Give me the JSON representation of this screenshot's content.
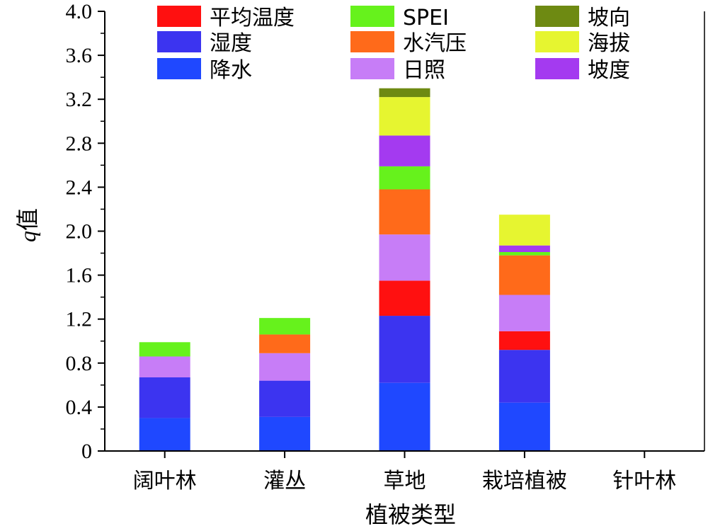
{
  "chart_data": {
    "type": "bar",
    "stacked": true,
    "xlabel": "植被类型",
    "ylabel": "q值",
    "ylabel_italic_part": "q",
    "ylabel_rest": "值",
    "ylim": [
      0,
      4.0
    ],
    "yticks": [
      "0",
      "0.4",
      "0.8",
      "1.2",
      "1.6",
      "2.0",
      "2.4",
      "2.8",
      "3.2",
      "3.6",
      "4.0"
    ],
    "ytick_values": [
      0,
      0.4,
      0.8,
      1.2,
      1.6,
      2.0,
      2.4,
      2.8,
      3.2,
      3.6,
      4.0
    ],
    "grid": false,
    "legend_position": "top, inside plot, 3 columns",
    "categories": [
      "阔叶林",
      "灌丛",
      "草地",
      "栽培植被",
      "针叶林"
    ],
    "series": [
      {
        "name": "降水",
        "color": "#1F48FF",
        "values": [
          0.3,
          0.31,
          0.62,
          0.44,
          0
        ]
      },
      {
        "name": "湿度",
        "color": "#3C34F0",
        "values": [
          0.37,
          0.33,
          0.61,
          0.48,
          0
        ]
      },
      {
        "name": "平均温度",
        "color": "#FF1010",
        "values": [
          0,
          0,
          0.32,
          0.17,
          0
        ]
      },
      {
        "name": "日照",
        "color": "#C77DF7",
        "values": [
          0.19,
          0.25,
          0.42,
          0.33,
          0
        ]
      },
      {
        "name": "水汽压",
        "color": "#FF6A1A",
        "values": [
          0,
          0.17,
          0.41,
          0.36,
          0
        ]
      },
      {
        "name": "SPEI",
        "color": "#66F21C",
        "values": [
          0.13,
          0.15,
          0.21,
          0.03,
          0
        ]
      },
      {
        "name": "坡度",
        "color": "#A43AF0",
        "values": [
          0,
          0,
          0.28,
          0.06,
          0
        ]
      },
      {
        "name": "海拔",
        "color": "#E6F530",
        "values": [
          0,
          0,
          0.35,
          0.28,
          0
        ]
      },
      {
        "name": "坡向",
        "color": "#6E8A12",
        "values": [
          0,
          0,
          0.08,
          0,
          0
        ]
      }
    ],
    "legend_order": [
      "平均温度",
      "湿度",
      "降水",
      "SPEI",
      "水汽压",
      "日照",
      "坡向",
      "海拔",
      "坡度"
    ]
  }
}
